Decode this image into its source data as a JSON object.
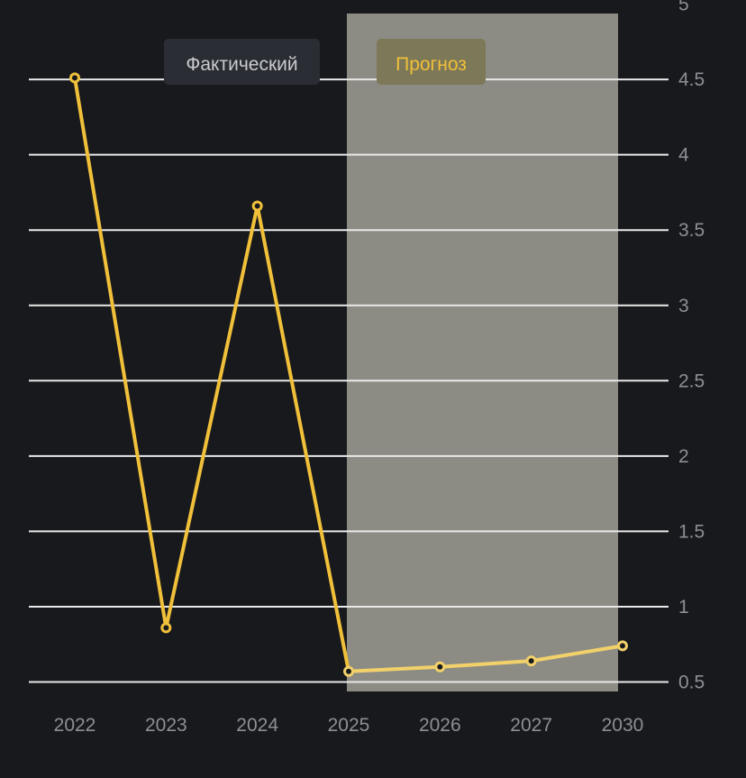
{
  "chart_data": {
    "type": "line",
    "x": [
      "2022",
      "2023",
      "2024",
      "2025",
      "2026",
      "2027",
      "2030"
    ],
    "series": [
      {
        "values": [
          4.51,
          0.86,
          3.66,
          0.57,
          0.6,
          0.64,
          0.74
        ]
      }
    ],
    "actual_range": [
      "2022",
      "2024"
    ],
    "forecast_range": [
      "2025",
      "2030"
    ],
    "legend": {
      "actual_label": "Фактический",
      "forecast_label": "Прогноз"
    },
    "y_ticks": [
      "0.5",
      "1",
      "1.5",
      "2",
      "2.5",
      "3",
      "3.5",
      "4",
      "4.5",
      "5"
    ],
    "ylim": [
      0.5,
      5
    ],
    "y_axis_side": "right",
    "grid": true,
    "colors": {
      "background": "#18191d",
      "line": "#f0c03a",
      "forecast_line": "#f2d16b",
      "forecast_band": "#8d8c84",
      "grid": "#e9e9e9",
      "tick_text": "#8d8f96",
      "actual_tag_bg": "#2a2d33",
      "actual_tag_text": "#c9cbd0",
      "forecast_tag_bg": "#7d7858",
      "forecast_tag_text": "#f0c03a"
    }
  }
}
